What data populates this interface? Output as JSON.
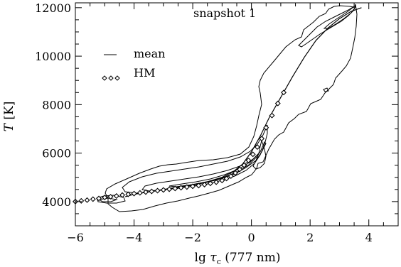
{
  "chart_data": {
    "type": "line",
    "annotation": "snapshot 1",
    "xlabel": "lg τc (777 nm)",
    "xlabel_parts": {
      "prefix": "lg ",
      "symbol": "τ",
      "subscript": "c",
      "suffix": " (777 nm)"
    },
    "ylabel": "T [K]",
    "ylabel_parts": {
      "symbol": "T",
      "unit": " [K]"
    },
    "xlim": [
      -6,
      5
    ],
    "ylim": [
      3000,
      12200
    ],
    "xticks": [
      -6,
      -4,
      -2,
      0,
      2,
      4
    ],
    "xtick_labels": [
      "−6",
      "−4",
      "−2",
      "0",
      "2",
      "4"
    ],
    "yticks": [
      4000,
      6000,
      8000,
      10000,
      12000
    ],
    "ytick_labels": [
      "4000",
      "6000",
      "8000",
      "10000",
      "12000"
    ],
    "legend_position": "upper-left",
    "colors": {
      "line": "#000000",
      "background": "#ffffff"
    },
    "series": [
      {
        "name": "mean",
        "style": "line",
        "x": [
          -4.3,
          -4.0,
          -3.5,
          -3.0,
          -2.5,
          -2.0,
          -1.5,
          -1.0,
          -0.6,
          -0.3,
          0.0,
          0.3,
          0.6,
          1.0,
          1.4,
          1.8,
          2.2,
          2.6,
          3.0,
          3.4,
          3.75
        ],
        "y": [
          4200,
          4300,
          4400,
          4500,
          4600,
          4700,
          4820,
          5000,
          5250,
          5550,
          6050,
          6700,
          7450,
          8300,
          9150,
          9950,
          10650,
          11150,
          11550,
          11850,
          12000
        ]
      },
      {
        "name": "HM",
        "style": "markers",
        "marker": "diamond",
        "x": [
          -6.0,
          -5.8,
          -5.6,
          -5.4,
          -5.2,
          -5.0,
          -4.8,
          -4.6,
          -4.4,
          -4.2,
          -4.0,
          -3.8,
          -3.6,
          -3.4,
          -3.2,
          -3.0,
          -2.8,
          -2.6,
          -2.4,
          -2.2,
          -2.0,
          -1.8,
          -1.6,
          -1.4,
          -1.2,
          -1.0,
          -0.85,
          -0.7,
          -0.55,
          -0.4,
          -0.25,
          -0.1,
          0.05,
          0.2,
          0.35,
          0.5,
          0.7,
          0.9,
          1.1
        ],
        "y": [
          4000,
          4030,
          4060,
          4100,
          4130,
          4170,
          4200,
          4230,
          4270,
          4300,
          4330,
          4360,
          4390,
          4420,
          4450,
          4480,
          4510,
          4540,
          4570,
          4600,
          4630,
          4660,
          4700,
          4750,
          4800,
          4870,
          4950,
          5050,
          5180,
          5330,
          5500,
          5700,
          5950,
          6250,
          6600,
          7050,
          7550,
          8050,
          8500
        ]
      }
    ]
  }
}
